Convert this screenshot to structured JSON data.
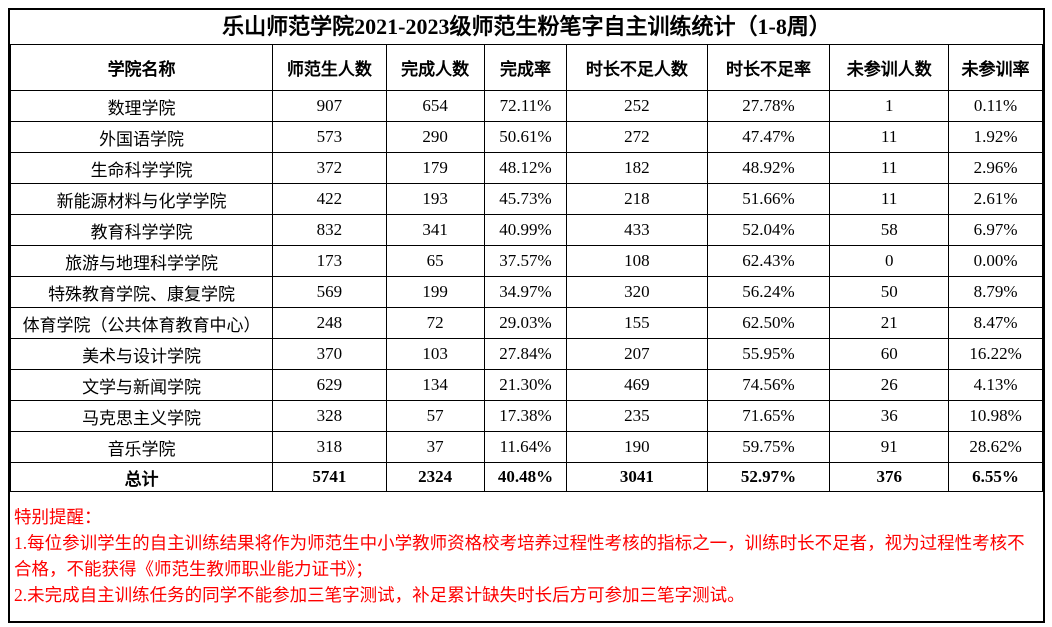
{
  "title": "乐山师范学院2021-2023级师范生粉笔字自主训练统计（1-8周）",
  "table": {
    "columns": [
      "学院名称",
      "师范生人数",
      "完成人数",
      "完成率",
      "时长不足人数",
      "时长不足率",
      "未参训人数",
      "未参训率"
    ],
    "rows": [
      [
        "数理学院",
        "907",
        "654",
        "72.11%",
        "252",
        "27.78%",
        "1",
        "0.11%"
      ],
      [
        "外国语学院",
        "573",
        "290",
        "50.61%",
        "272",
        "47.47%",
        "11",
        "1.92%"
      ],
      [
        "生命科学学院",
        "372",
        "179",
        "48.12%",
        "182",
        "48.92%",
        "11",
        "2.96%"
      ],
      [
        "新能源材料与化学学院",
        "422",
        "193",
        "45.73%",
        "218",
        "51.66%",
        "11",
        "2.61%"
      ],
      [
        "教育科学学院",
        "832",
        "341",
        "40.99%",
        "433",
        "52.04%",
        "58",
        "6.97%"
      ],
      [
        "旅游与地理科学学院",
        "173",
        "65",
        "37.57%",
        "108",
        "62.43%",
        "0",
        "0.00%"
      ],
      [
        "特殊教育学院、康复学院",
        "569",
        "199",
        "34.97%",
        "320",
        "56.24%",
        "50",
        "8.79%"
      ],
      [
        "体育学院（公共体育教育中心）",
        "248",
        "72",
        "29.03%",
        "155",
        "62.50%",
        "21",
        "8.47%"
      ],
      [
        "美术与设计学院",
        "370",
        "103",
        "27.84%",
        "207",
        "55.95%",
        "60",
        "16.22%"
      ],
      [
        "文学与新闻学院",
        "629",
        "134",
        "21.30%",
        "469",
        "74.56%",
        "26",
        "4.13%"
      ],
      [
        "马克思主义学院",
        "328",
        "57",
        "17.38%",
        "235",
        "71.65%",
        "36",
        "10.98%"
      ],
      [
        "音乐学院",
        "318",
        "37",
        "11.64%",
        "190",
        "59.75%",
        "91",
        "28.62%"
      ]
    ],
    "total_row": [
      "总计",
      "5741",
      "2324",
      "40.48%",
      "3041",
      "52.97%",
      "376",
      "6.55%"
    ]
  },
  "notes": {
    "heading": "特别提醒：",
    "items": [
      "1.每位参训学生的自主训练结果将作为师范生中小学教师资格校考培养过程性考核的指标之一，训练时长不足者，视为过程性考核不合格，不能获得《师范生教师职业能力证书》；",
      "2.未完成自主训练任务的同学不能参加三笔字测试，补足累计缺失时长后方可参加三笔字测试。"
    ]
  },
  "colors": {
    "border": "#000000",
    "text": "#000000",
    "note_red": "#fe0000",
    "background": "#ffffff"
  }
}
